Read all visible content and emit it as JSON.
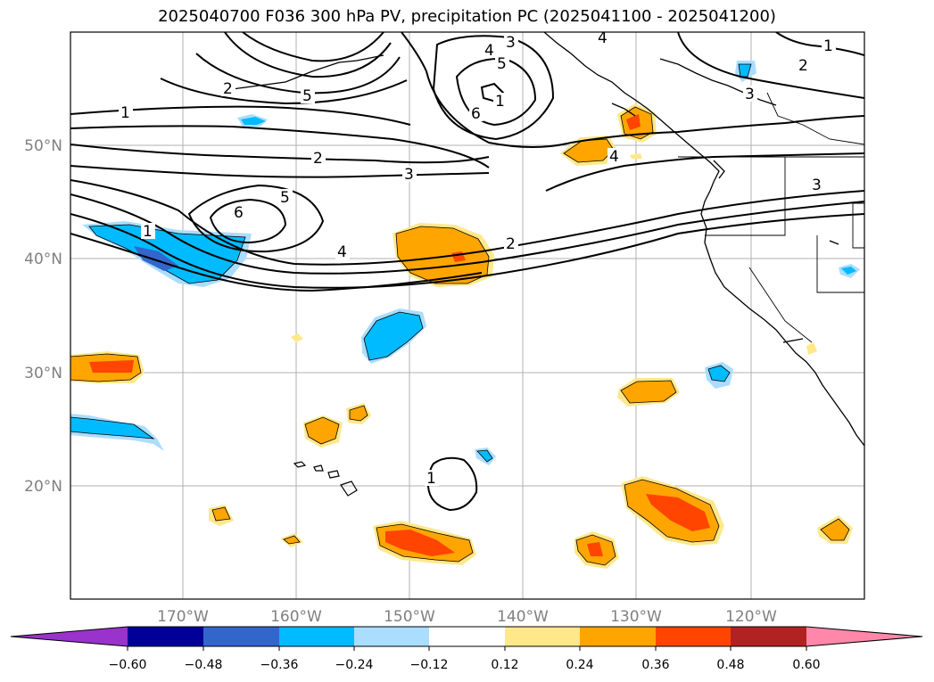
{
  "title": "2025040700 F036 300 hPa PV, precipitation PC (2025041100 - 2025041200)",
  "map": {
    "lon_ticks": [
      "170°W",
      "160°W",
      "150°W",
      "140°W",
      "130°W",
      "120°W"
    ],
    "lat_ticks": [
      "50°N",
      "40°N",
      "30°N",
      "20°N"
    ],
    "pv_contour_labels": [
      "1",
      "2",
      "3",
      "4",
      "5",
      "6",
      "1",
      "2",
      "3",
      "4",
      "5",
      "6",
      "1",
      "2",
      "3",
      "4",
      "5",
      "1",
      "2",
      "3",
      "4",
      "1"
    ]
  },
  "colorbar": {
    "ticks": [
      "−0.60",
      "−0.48",
      "−0.36",
      "−0.24",
      "−0.12",
      "0.12",
      "0.24",
      "0.36",
      "0.48",
      "0.60"
    ],
    "colors": [
      "#9933cc",
      "#000099",
      "#3366cc",
      "#00bbff",
      "#aaddff",
      "#ffffff",
      "#ffe88a",
      "#ffa500",
      "#ff4500",
      "#b22222",
      "#ff88aa"
    ]
  }
}
